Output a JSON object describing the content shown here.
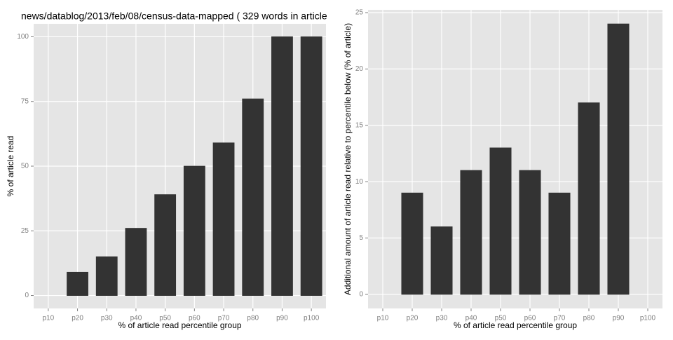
{
  "chart_data": [
    {
      "type": "bar",
      "title": "news/datablog/2013/feb/08/census-data-mapped ( 329 words in article",
      "x_label": "% of article read percentile group",
      "y_label": "% of article read",
      "categories": [
        "p10",
        "p20",
        "p30",
        "p40",
        "p50",
        "p60",
        "p70",
        "p80",
        "p90",
        "p100"
      ],
      "values": [
        0,
        9,
        15,
        26,
        39,
        50,
        59,
        76,
        100,
        100
      ],
      "color": "#333333",
      "ylim": [
        -5,
        105
      ],
      "yticks": [
        0,
        25,
        50,
        75,
        100
      ],
      "grid": true
    },
    {
      "type": "bar",
      "x_label": "% of article read percentile group",
      "y_label": "Additional amount of article read relative to percentile below (% of article)",
      "categories": [
        "p10",
        "p20",
        "p30",
        "p40",
        "p50",
        "p60",
        "p70",
        "p80",
        "p90",
        "p100"
      ],
      "values": [
        0,
        9,
        6,
        11,
        13,
        11,
        9,
        17,
        24,
        0
      ],
      "color": "#333333",
      "ylim": [
        -1.25,
        25.25
      ],
      "yticks": [
        0,
        5,
        10,
        15,
        20,
        25
      ],
      "grid": true
    }
  ]
}
